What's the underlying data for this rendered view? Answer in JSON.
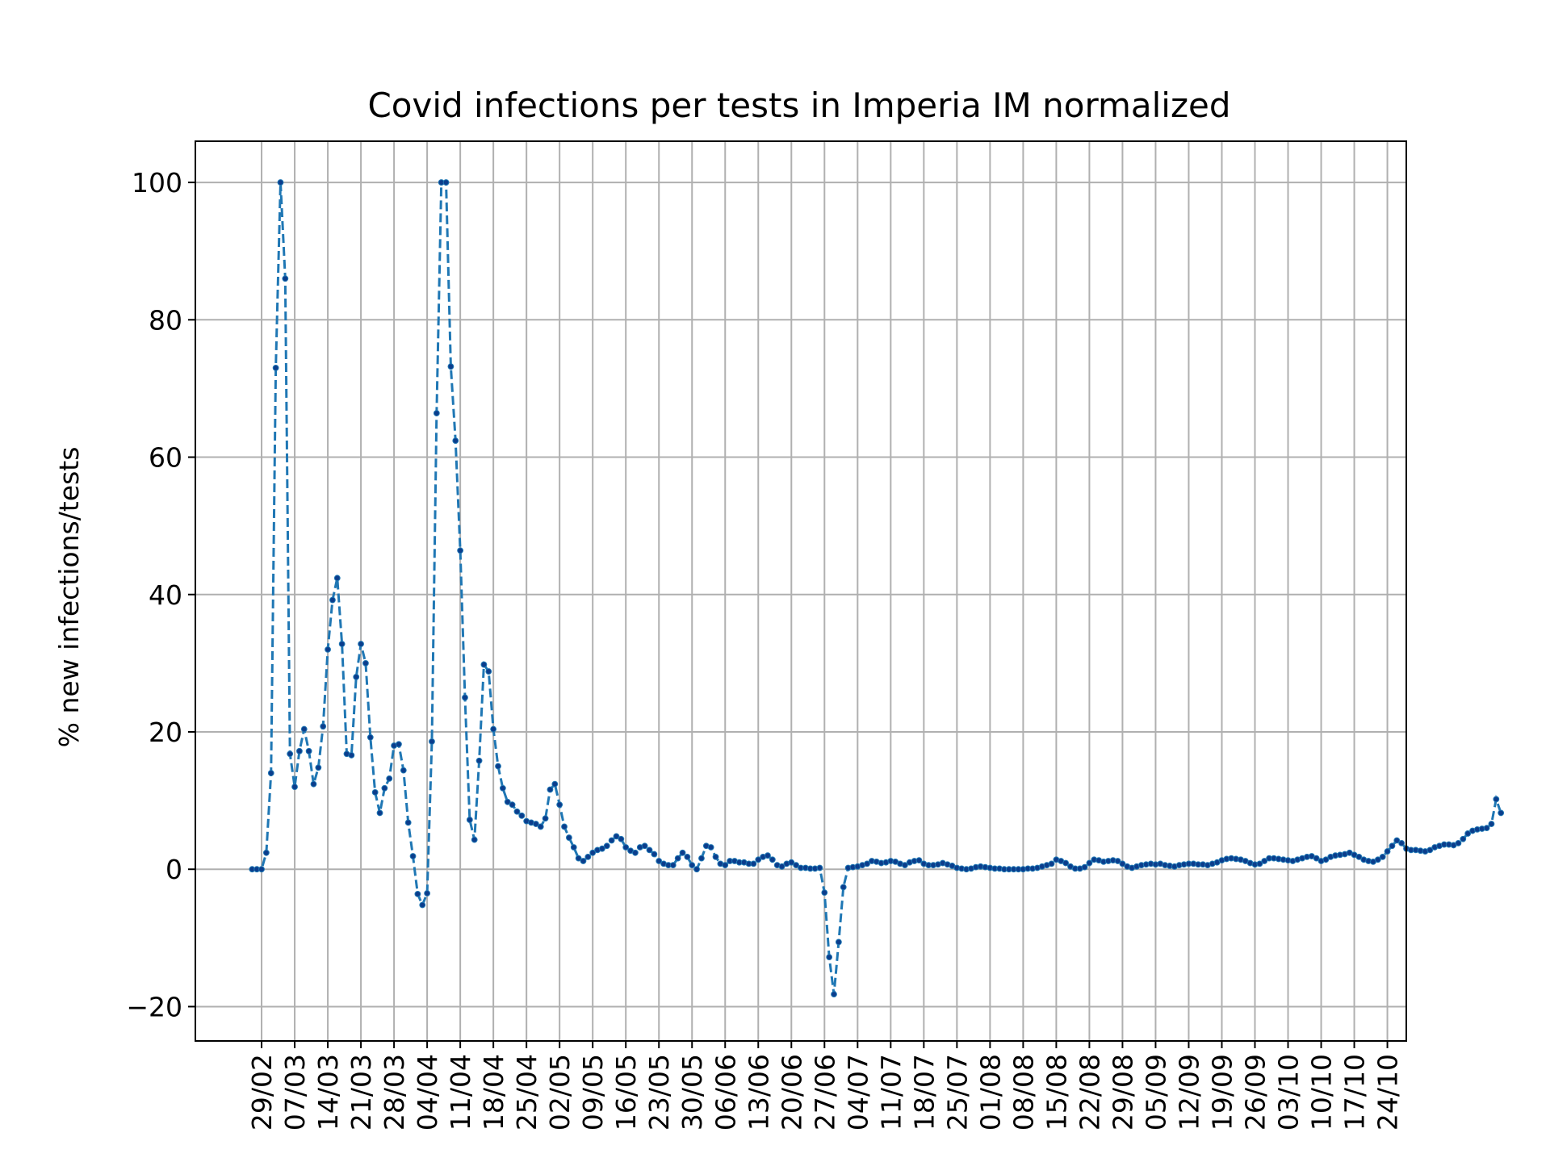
{
  "chart_data": {
    "type": "line",
    "title": "Covid infections per tests in Imperia IM normalized",
    "xlabel": "",
    "ylabel": "% new infections/tests",
    "grid": true,
    "legend": "none",
    "ylim": [
      -25,
      106
    ],
    "yticks": [
      -20,
      0,
      20,
      40,
      60,
      80,
      100
    ],
    "ytick_labels": [
      "−20",
      "0",
      "20",
      "40",
      "60",
      "80",
      "100"
    ],
    "xlim": [
      "2020-02-15",
      "2020-10-28"
    ],
    "xticks": [
      "2020-02-29",
      "2020-03-07",
      "2020-03-14",
      "2020-03-21",
      "2020-03-28",
      "2020-04-04",
      "2020-04-11",
      "2020-04-18",
      "2020-04-25",
      "2020-05-02",
      "2020-05-09",
      "2020-05-16",
      "2020-05-23",
      "2020-05-30",
      "2020-06-06",
      "2020-06-13",
      "2020-06-20",
      "2020-06-27",
      "2020-07-04",
      "2020-07-11",
      "2020-07-18",
      "2020-07-25",
      "2020-08-01",
      "2020-08-08",
      "2020-08-15",
      "2020-08-22",
      "2020-08-29",
      "2020-09-05",
      "2020-09-12",
      "2020-09-19",
      "2020-09-26",
      "2020-10-03",
      "2020-10-10",
      "2020-10-17",
      "2020-10-24"
    ],
    "xtick_labels": [
      "29/02",
      "07/03",
      "14/03",
      "21/03",
      "28/03",
      "04/04",
      "11/04",
      "18/04",
      "25/04",
      "02/05",
      "09/05",
      "16/05",
      "23/05",
      "30/05",
      "06/06",
      "13/06",
      "20/06",
      "27/06",
      "04/07",
      "11/07",
      "18/07",
      "25/07",
      "01/08",
      "08/08",
      "15/08",
      "22/08",
      "29/08",
      "05/09",
      "12/09",
      "19/09",
      "26/09",
      "03/10",
      "10/10",
      "17/10",
      "24/10"
    ],
    "series": [
      {
        "color": "#1f77b4",
        "marker_color": "#0b3d8c",
        "line_style": "dashed",
        "x_start": "2020-02-27",
        "x_step_days": 1,
        "values": [
          0,
          0,
          0,
          2.4,
          14,
          73,
          100,
          86,
          16.8,
          12,
          17.2,
          20.4,
          17.2,
          12.4,
          14.8,
          20.8,
          32,
          39.2,
          42.4,
          32.8,
          16.8,
          16.6,
          28,
          32.8,
          30,
          19.2,
          11.2,
          8.2,
          11.8,
          13.2,
          18,
          18.2,
          14.4,
          6.8,
          1.9,
          -3.6,
          -5.2,
          -3.5,
          18.6,
          66.4,
          100,
          100,
          73.2,
          62.4,
          46.4,
          25,
          7.2,
          4.3,
          15.8,
          29.8,
          28.8,
          20.4,
          15,
          11.8,
          9.8,
          9.4,
          8.4,
          7.8,
          7,
          6.8,
          6.6,
          6.2,
          7.4,
          11.6,
          12.4,
          9.4,
          6.2,
          4.6,
          3.2,
          1.6,
          1.2,
          1.8,
          2.4,
          2.8,
          3,
          3.4,
          4.2,
          4.8,
          4.4,
          3.2,
          2.7,
          2.4,
          3.2,
          3.4,
          2.8,
          2.2,
          1.2,
          0.8,
          0.6,
          0.6,
          1.6,
          2.4,
          1.8,
          0.6,
          0,
          1.6,
          3.4,
          3.2,
          1.8,
          0.8,
          0.6,
          1.2,
          1.2,
          1,
          1,
          0.8,
          0.8,
          1.4,
          1.8,
          2,
          1.4,
          0.6,
          0.4,
          0.8,
          1,
          0.6,
          0.2,
          0.2,
          0.1,
          0.1,
          0.2,
          -3.4,
          -12.8,
          -18.2,
          -10.6,
          -2.6,
          0.2,
          0.3,
          0.4,
          0.6,
          0.8,
          1.2,
          1.1,
          0.9,
          1,
          1.2,
          1.1,
          0.8,
          0.6,
          1,
          1.2,
          1.3,
          0.8,
          0.6,
          0.6,
          0.7,
          0.9,
          0.7,
          0.5,
          0.2,
          0.1,
          0,
          0.1,
          0.3,
          0.4,
          0.3,
          0.2,
          0.1,
          0.1,
          0,
          0,
          0,
          0,
          0,
          0.1,
          0.1,
          0.2,
          0.4,
          0.6,
          0.8,
          1.4,
          1.2,
          0.9,
          0.4,
          0.1,
          0.1,
          0.3,
          0.9,
          1.4,
          1.3,
          1.1,
          1.2,
          1.3,
          1.2,
          0.8,
          0.4,
          0.2,
          0.4,
          0.6,
          0.7,
          0.8,
          0.7,
          0.8,
          0.6,
          0.5,
          0.4,
          0.6,
          0.7,
          0.8,
          0.8,
          0.7,
          0.7,
          0.6,
          0.8,
          1,
          1.3,
          1.5,
          1.6,
          1.5,
          1.4,
          1.2,
          0.9,
          0.7,
          0.8,
          1.2,
          1.6,
          1.6,
          1.5,
          1.4,
          1.3,
          1.2,
          1.4,
          1.6,
          1.8,
          1.9,
          1.6,
          1.2,
          1.4,
          1.8,
          2,
          2.1,
          2.2,
          2.4,
          2.1,
          1.8,
          1.4,
          1.2,
          1.1,
          1.4,
          1.8,
          2.6,
          3.4,
          4.2,
          3.8,
          3,
          2.8,
          2.8,
          2.7,
          2.6,
          2.8,
          3.2,
          3.4,
          3.6,
          3.6,
          3.5,
          3.8,
          4.4,
          5.2,
          5.6,
          5.8,
          5.9,
          6,
          6.6,
          10.2,
          8.2
        ]
      }
    ]
  }
}
